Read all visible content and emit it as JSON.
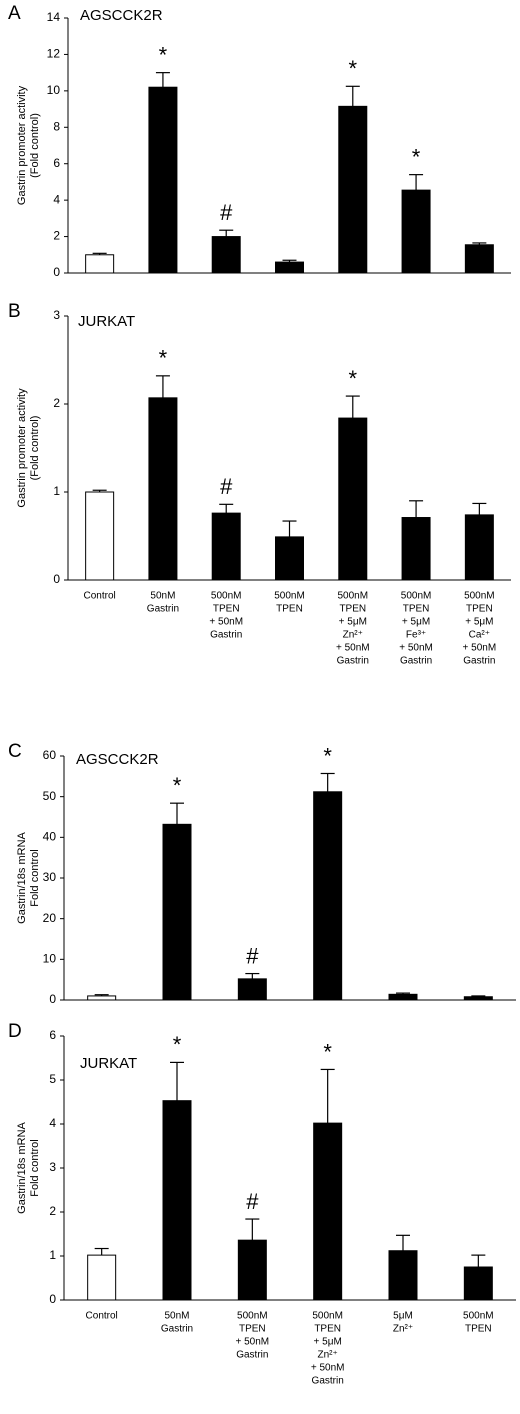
{
  "chart_data": [
    {
      "type": "bar",
      "panel": "A",
      "title": "AGSCCK2R",
      "ylabel": [
        "Gastrin promoter activity",
        "(Fold control)"
      ],
      "categories": [
        null,
        null,
        null,
        null,
        null,
        null,
        null
      ],
      "values": [
        1.0,
        10.2,
        2.0,
        0.6,
        9.15,
        4.55,
        1.55
      ],
      "errors": [
        0.08,
        0.8,
        0.35,
        0.1,
        1.1,
        0.85,
        0.1
      ],
      "annotations": [
        null,
        "*",
        "#",
        null,
        "*",
        "*",
        null
      ],
      "colors": [
        "#ffffff",
        "#000000",
        "#000000",
        "#000000",
        "#000000",
        "#000000",
        "#000000"
      ],
      "ylim": [
        0,
        14
      ],
      "yticks": [
        0,
        2,
        4,
        6,
        8,
        10,
        12,
        14
      ]
    },
    {
      "type": "bar",
      "panel": "B",
      "title": "JURKAT",
      "ylabel": [
        "Gastrin promoter activity",
        "(Fold control)"
      ],
      "categories": [
        [
          "Control"
        ],
        [
          "50nM",
          "Gastrin"
        ],
        [
          "500nM",
          "TPEN",
          "+ 50nM",
          "Gastrin"
        ],
        [
          "500nM",
          "TPEN"
        ],
        [
          "500nM",
          "TPEN",
          "+ 5μM",
          "Zn²⁺",
          "+ 50nM",
          "Gastrin"
        ],
        [
          "500nM",
          "TPEN",
          "+ 5μM",
          "Fe³⁺",
          "+ 50nM",
          "Gastrin"
        ],
        [
          "500nM",
          "TPEN",
          "+ 5μM",
          "Ca²⁺",
          "+ 50nM",
          "Gastrin"
        ]
      ],
      "values": [
        1.0,
        2.07,
        0.76,
        0.49,
        1.84,
        0.71,
        0.74
      ],
      "errors": [
        0.02,
        0.25,
        0.1,
        0.18,
        0.25,
        0.19,
        0.13
      ],
      "annotations": [
        null,
        "*",
        "#",
        null,
        "*",
        null,
        null
      ],
      "colors": [
        "#ffffff",
        "#000000",
        "#000000",
        "#000000",
        "#000000",
        "#000000",
        "#000000"
      ],
      "ylim": [
        0,
        3
      ],
      "yticks": [
        0,
        1,
        2,
        3
      ]
    },
    {
      "type": "bar",
      "panel": "C",
      "title": "AGSCCK2R",
      "ylabel": [
        "Gastrin/18s mRNA",
        "Fold control"
      ],
      "categories": [
        null,
        null,
        null,
        null,
        null,
        null
      ],
      "values": [
        1.0,
        43.2,
        5.2,
        51.2,
        1.4,
        0.8
      ],
      "errors": [
        0.3,
        5.2,
        1.3,
        4.5,
        0.3,
        0.2
      ],
      "annotations": [
        null,
        "*",
        "#",
        "*",
        null,
        null
      ],
      "colors": [
        "#ffffff",
        "#000000",
        "#000000",
        "#000000",
        "#000000",
        "#000000"
      ],
      "ylim": [
        0,
        60
      ],
      "yticks": [
        0,
        10,
        20,
        30,
        40,
        50,
        60
      ]
    },
    {
      "type": "bar",
      "panel": "D",
      "title": "JURKAT",
      "ylabel": [
        "Gastrin/18s mRNA",
        "Fold control"
      ],
      "categories": [
        [
          "Control"
        ],
        [
          "50nM",
          "Gastrin"
        ],
        [
          "500nM",
          "TPEN",
          "+ 50nM",
          "Gastrin"
        ],
        [
          "500nM",
          "TPEN",
          "+ 5μM",
          "Zn²⁺",
          "+ 50nM",
          "Gastrin"
        ],
        [
          "5μM",
          "Zn²⁺"
        ],
        [
          "500nM",
          "TPEN"
        ]
      ],
      "values": [
        1.02,
        4.53,
        1.36,
        4.02,
        1.12,
        0.75
      ],
      "errors": [
        0.15,
        0.87,
        0.48,
        1.22,
        0.35,
        0.27
      ],
      "annotations": [
        null,
        "*",
        "#",
        "*",
        null,
        null
      ],
      "colors": [
        "#ffffff",
        "#000000",
        "#000000",
        "#000000",
        "#000000",
        "#000000"
      ],
      "ylim": [
        0,
        6
      ],
      "yticks": [
        0,
        1,
        2,
        3,
        4,
        5,
        6
      ]
    }
  ]
}
